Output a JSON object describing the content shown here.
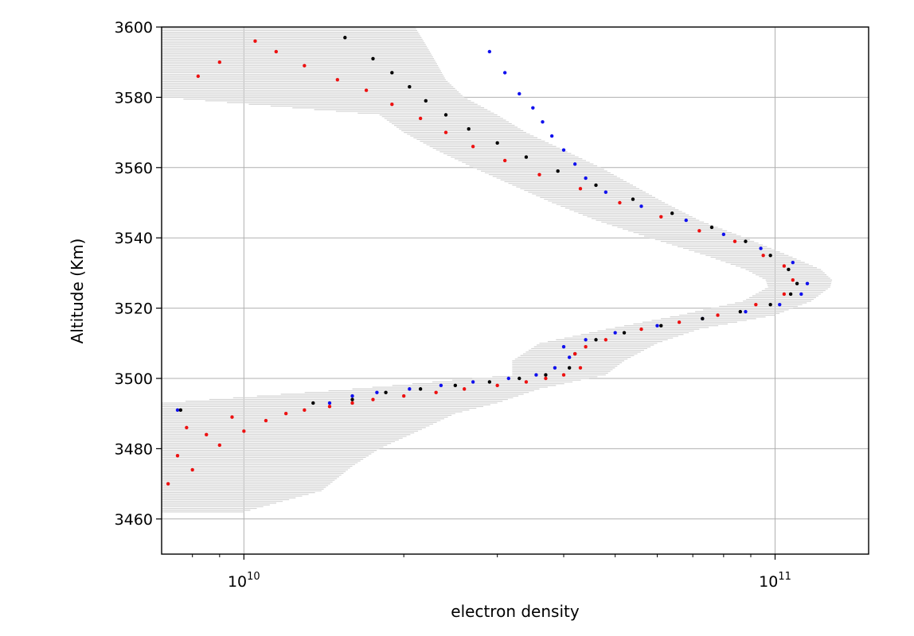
{
  "chart_data": {
    "type": "scatter",
    "title": "",
    "xlabel": "electron density",
    "ylabel": "Altitude (Km)",
    "xscale": "log",
    "xlim": [
      7000000000,
      150000000000
    ],
    "ylim": [
      3450,
      3600
    ],
    "grid": true,
    "legend": "none",
    "y_ticks": [
      3460,
      3480,
      3500,
      3520,
      3540,
      3560,
      3580,
      3600
    ],
    "y_tick_labels": [
      "3460",
      "3480",
      "3500",
      "3520",
      "3540",
      "3560",
      "3580",
      "3600"
    ],
    "x_major_ticks": [
      10000000000,
      100000000000
    ],
    "x_tick_labels": [
      {
        "base": "10",
        "exp": "10"
      },
      {
        "base": "10",
        "exp": "11"
      }
    ],
    "x_minor_ticks": [
      8000000000,
      9000000000,
      20000000000,
      30000000000,
      40000000000,
      50000000000,
      60000000000,
      70000000000,
      80000000000,
      90000000000
    ],
    "error_band": {
      "name": "uncertainty",
      "color": "#d3d3d3",
      "altitude": [
        3462,
        3468,
        3475,
        3480,
        3486,
        3490,
        3493,
        3497,
        3501,
        3505,
        3510,
        3514,
        3518,
        3522,
        3526,
        3528,
        3531,
        3535,
        3540,
        3545,
        3550,
        3555,
        3560,
        3565,
        3570,
        3575,
        3580,
        3585,
        3590,
        3595,
        3600
      ],
      "lower": [
        7000000000,
        7000000000,
        7000000000,
        7000000000,
        7000000000,
        7000000000,
        7000000000,
        16000000000,
        32000000000,
        32000000000,
        36000000000,
        48000000000,
        66000000000,
        87000000000,
        97000000000,
        96000000000,
        88000000000,
        74000000000,
        58000000000,
        46000000000,
        38000000000,
        32000000000,
        27000000000,
        23000000000,
        20000000000,
        18000000000,
        7000000000,
        7000000000,
        7000000000,
        7000000000,
        7000000000
      ],
      "upper": [
        10000000000,
        14000000000,
        16000000000,
        18000000000,
        22000000000,
        25000000000,
        30000000000,
        36000000000,
        48000000000,
        52000000000,
        60000000000,
        72000000000,
        100000000000,
        117000000000,
        127000000000,
        128000000000,
        122000000000,
        106000000000,
        88000000000,
        72000000000,
        62000000000,
        54000000000,
        47000000000,
        40000000000,
        34000000000,
        30000000000,
        26000000000,
        24000000000,
        23000000000,
        22000000000,
        21000000000
      ]
    },
    "series": [
      {
        "color": "#1010ee",
        "x": [
          7500000000,
          14500000000,
          16000000000,
          17800000000,
          20500000000,
          23500000000,
          27000000000,
          31500000000,
          35500000000,
          38500000000,
          41000000000,
          40000000000,
          44000000000,
          50000000000,
          60000000000,
          73000000000,
          88000000000,
          102000000000,
          112000000000,
          115000000000,
          108000000000,
          94000000000,
          80000000000,
          68000000000,
          56000000000,
          48000000000,
          44000000000,
          42000000000,
          40000000000,
          38000000000,
          36500000000,
          35000000000,
          33000000000,
          31000000000,
          29000000000
        ],
        "y": [
          3491,
          3493,
          3495,
          3496,
          3497,
          3498,
          3499,
          3500,
          3501,
          3503,
          3506,
          3509,
          3511,
          3513,
          3515,
          3517,
          3519,
          3521,
          3524,
          3527,
          3533,
          3537,
          3541,
          3545,
          3549,
          3553,
          3557,
          3561,
          3565,
          3569,
          3573,
          3577,
          3581,
          3587,
          3593
        ]
      },
      {
        "color": "#000000",
        "x": [
          7600000000,
          13500000000,
          16000000000,
          18500000000,
          21500000000,
          25000000000,
          29000000000,
          33000000000,
          37000000000,
          41000000000,
          42000000000,
          46000000000,
          52000000000,
          61000000000,
          73000000000,
          86000000000,
          98000000000,
          107000000000,
          110000000000,
          106000000000,
          98000000000,
          88000000000,
          76000000000,
          64000000000,
          54000000000,
          46000000000,
          39000000000,
          34000000000,
          30000000000,
          26500000000,
          24000000000,
          22000000000,
          20500000000,
          19000000000,
          17500000000,
          15500000000
        ],
        "y": [
          3491,
          3493,
          3494,
          3496,
          3497,
          3498,
          3499,
          3500,
          3501,
          3503,
          3507,
          3511,
          3513,
          3515,
          3517,
          3519,
          3521,
          3524,
          3527,
          3531,
          3535,
          3539,
          3543,
          3547,
          3551,
          3555,
          3559,
          3563,
          3567,
          3571,
          3575,
          3579,
          3583,
          3587,
          3591,
          3597
        ]
      },
      {
        "color": "#ee1010",
        "x": [
          7200000000,
          8000000000,
          7500000000,
          9000000000,
          8500000000,
          7800000000,
          10000000000,
          11000000000,
          9500000000,
          12000000000,
          13000000000,
          14500000000,
          16000000000,
          17500000000,
          20000000000,
          23000000000,
          26000000000,
          30000000000,
          34000000000,
          37000000000,
          40000000000,
          43000000000,
          42000000000,
          44000000000,
          48000000000,
          56000000000,
          66000000000,
          78000000000,
          92000000000,
          104000000000,
          108000000000,
          104000000000,
          95000000000,
          84000000000,
          72000000000,
          61000000000,
          51000000000,
          43000000000,
          36000000000,
          31000000000,
          27000000000,
          24000000000,
          21500000000,
          19000000000,
          17000000000,
          15000000000,
          13000000000,
          11500000000,
          10500000000,
          9000000000,
          8200000000
        ],
        "y": [
          3470,
          3474,
          3478,
          3481,
          3484,
          3486,
          3485,
          3488,
          3489,
          3490,
          3491,
          3492,
          3493,
          3494,
          3495,
          3496,
          3497,
          3498,
          3499,
          3500,
          3501,
          3503,
          3507,
          3509,
          3511,
          3514,
          3516,
          3518,
          3521,
          3524,
          3528,
          3532,
          3535,
          3539,
          3542,
          3546,
          3550,
          3554,
          3558,
          3562,
          3566,
          3570,
          3574,
          3578,
          3582,
          3585,
          3589,
          3593,
          3596,
          3590,
          3586
        ]
      }
    ]
  }
}
